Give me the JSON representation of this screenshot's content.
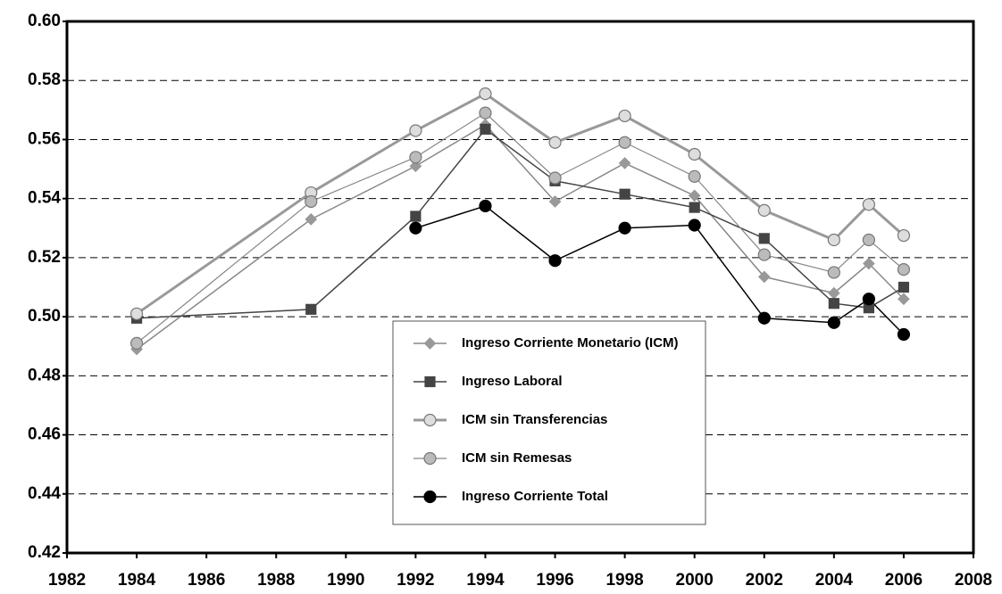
{
  "chart_data": {
    "type": "line",
    "x": [
      1984,
      1989,
      1992,
      1994,
      1996,
      1998,
      2000,
      2002,
      2004,
      2005,
      2006
    ],
    "series": [
      {
        "name": "Ingreso Corriente Monetario (ICM)",
        "color": "#999999",
        "line_color": "#888888",
        "line_width": 1.5,
        "marker": "diamond",
        "values": [
          0.489,
          0.533,
          0.551,
          0.565,
          0.539,
          0.552,
          0.541,
          0.5135,
          0.508,
          0.518,
          0.506
        ]
      },
      {
        "name": "Ingreso Laboral",
        "color": "#444444",
        "line_color": "#444444",
        "line_width": 1.5,
        "marker": "square",
        "values": [
          0.4995,
          0.5025,
          0.534,
          0.5635,
          0.546,
          0.5415,
          0.537,
          0.5265,
          0.5045,
          0.503,
          0.51
        ]
      },
      {
        "name": "ICM sin Transferencias",
        "color": "#dddddd",
        "line_color": "#999999",
        "line_width": 3,
        "marker": "circle",
        "values": [
          0.501,
          0.542,
          0.563,
          0.5755,
          0.559,
          0.568,
          0.555,
          0.536,
          0.526,
          0.538,
          0.5275
        ]
      },
      {
        "name": "ICM sin Remesas",
        "color": "#bbbbbb",
        "line_color": "#888888",
        "line_width": 1.2,
        "marker": "circle",
        "values": [
          0.491,
          0.539,
          0.554,
          0.569,
          0.547,
          0.559,
          0.5475,
          0.521,
          0.515,
          0.526,
          0.516
        ]
      },
      {
        "name": "Ingreso Corriente Total",
        "color": "#000000",
        "line_color": "#000000",
        "line_width": 1.5,
        "marker": "circle",
        "values": [
          null,
          null,
          0.53,
          0.5375,
          0.519,
          0.53,
          0.531,
          0.4995,
          0.498,
          0.506,
          0.494
        ]
      }
    ],
    "xlim": [
      1982,
      2008
    ],
    "xticks": [
      1982,
      1984,
      1986,
      1988,
      1990,
      1992,
      1994,
      1996,
      1998,
      2000,
      2002,
      2004,
      2006,
      2008
    ],
    "ylim": [
      0.42,
      0.6
    ],
    "yticks": [
      0.42,
      0.44,
      0.46,
      0.48,
      {
        "value": 0.5,
        "label": "0.50"
      },
      0.52,
      0.54,
      0.56,
      0.58,
      {
        "value": 0.6,
        "label": "0.60"
      }
    ],
    "grid": true
  }
}
